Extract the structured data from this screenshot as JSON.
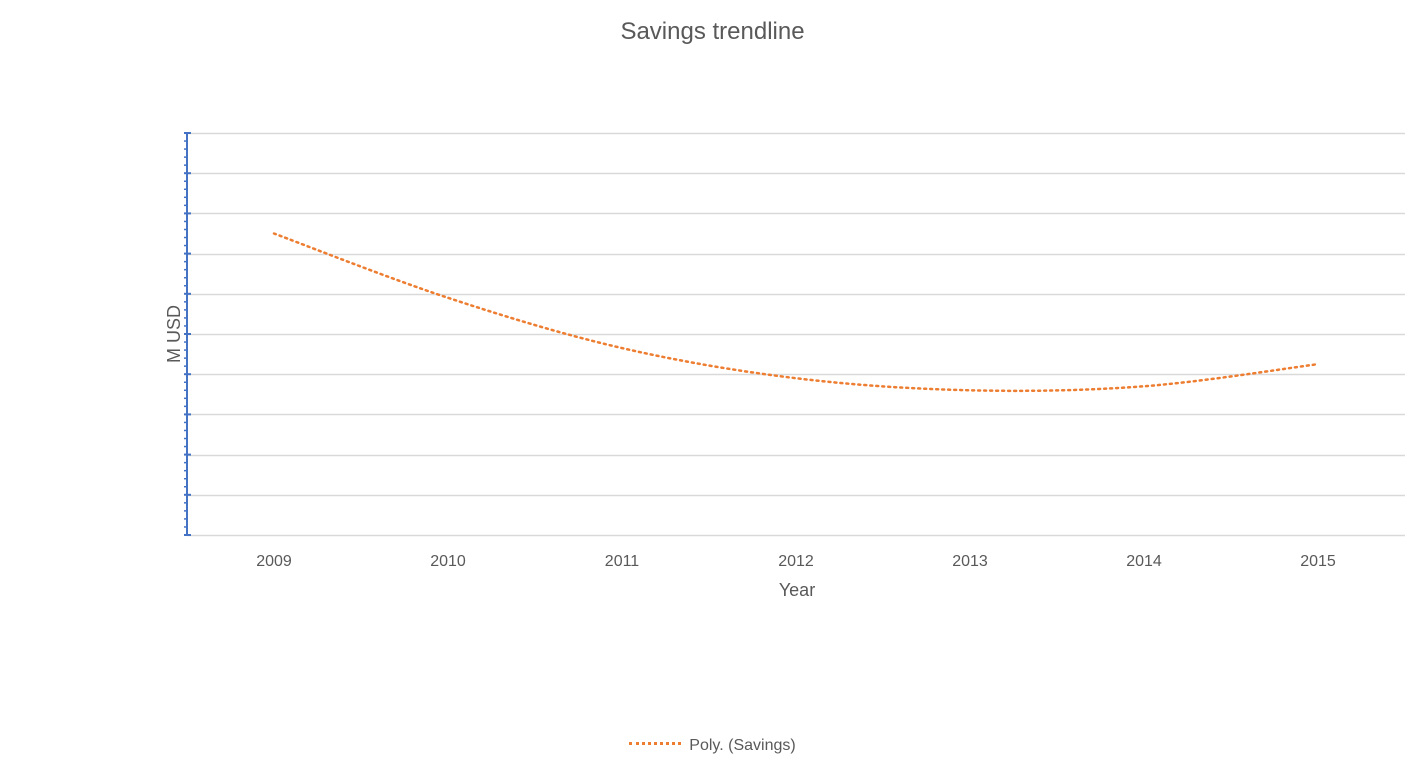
{
  "chart_data": {
    "type": "line",
    "title": "Savings trendline",
    "xlabel": "Year",
    "ylabel": "M USD",
    "categories": [
      "2009",
      "2010",
      "2011",
      "2012",
      "2013",
      "2014",
      "2015"
    ],
    "series": [
      {
        "name": "Poly. (Savings)",
        "style": "dotted",
        "color": "#ED7D31",
        "values": [
          7.5,
          5.9,
          4.65,
          3.9,
          3.6,
          3.7,
          4.25
        ]
      }
    ],
    "ylim": [
      0,
      10
    ],
    "y_major_ticks": 10,
    "y_tick_labels_visible": false,
    "grid": true,
    "legend": "bottom",
    "colors": {
      "gridline": "#D9D9D9",
      "axis": "#4472C4",
      "text": "#595959"
    }
  }
}
